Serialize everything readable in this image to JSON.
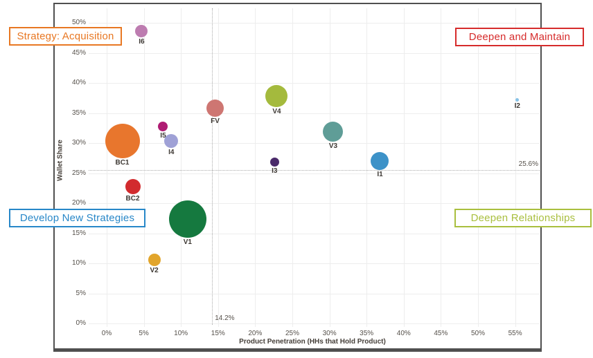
{
  "chart_data": {
    "type": "scatter",
    "subtype": "bubble-quadrant",
    "xlabel": "Product Penetration (HHs that Hold Product)",
    "ylabel": "Wallet Share",
    "xlim": [
      -2.4,
      58.4
    ],
    "ylim": [
      -0.6,
      52.5
    ],
    "grid": true,
    "x_ticks": [
      {
        "v": 0,
        "t": "0%"
      },
      {
        "v": 5,
        "t": "5%"
      },
      {
        "v": 10,
        "t": "10%"
      },
      {
        "v": 15,
        "t": "15%"
      },
      {
        "v": 20,
        "t": "20%"
      },
      {
        "v": 25,
        "t": "25%"
      },
      {
        "v": 30,
        "t": "30%"
      },
      {
        "v": 35,
        "t": "35%"
      },
      {
        "v": 40,
        "t": "40%"
      },
      {
        "v": 45,
        "t": "45%"
      },
      {
        "v": 50,
        "t": "50%"
      },
      {
        "v": 55,
        "t": "55%"
      }
    ],
    "y_ticks": [
      {
        "v": 0,
        "t": "0%"
      },
      {
        "v": 5,
        "t": "5%"
      },
      {
        "v": 10,
        "t": "10%"
      },
      {
        "v": 15,
        "t": "15%"
      },
      {
        "v": 20,
        "t": "20%"
      },
      {
        "v": 25,
        "t": "25%"
      },
      {
        "v": 30,
        "t": "30%"
      },
      {
        "v": 35,
        "t": "35%"
      },
      {
        "v": 40,
        "t": "40%"
      },
      {
        "v": 45,
        "t": "45%"
      },
      {
        "v": 50,
        "t": "50%"
      }
    ],
    "reference_lines": {
      "x_value": 14.2,
      "y_value": 25.6,
      "x_label": "14.2%",
      "y_label": "25.6%"
    },
    "points": [
      {
        "label": "BC1",
        "x": 2.1,
        "y": 30.4,
        "r": 25,
        "color": "#E8762D"
      },
      {
        "label": "BC2",
        "x": 3.5,
        "y": 22.8,
        "r": 11,
        "color": "#D22B2E"
      },
      {
        "label": "I6",
        "x": 4.7,
        "y": 48.6,
        "r": 9,
        "color": "#BD7CB0"
      },
      {
        "label": "V2",
        "x": 6.4,
        "y": 10.6,
        "r": 9,
        "color": "#E2A52B"
      },
      {
        "label": "I5",
        "x": 7.6,
        "y": 32.8,
        "r": 7,
        "color": "#AF1C73"
      },
      {
        "label": "I4",
        "x": 8.7,
        "y": 30.4,
        "r": 10,
        "color": "#9FA1D6"
      },
      {
        "label": "V1",
        "x": 10.9,
        "y": 17.4,
        "r": 27,
        "color": "#15793F"
      },
      {
        "label": "FV",
        "x": 14.6,
        "y": 35.8,
        "r": 12.5,
        "color": "#CE7672"
      },
      {
        "label": "I3",
        "x": 22.6,
        "y": 26.9,
        "r": 6.5,
        "color": "#4A2A6A"
      },
      {
        "label": "V4",
        "x": 22.9,
        "y": 37.8,
        "r": 16,
        "color": "#A4BA3D"
      },
      {
        "label": "V3",
        "x": 30.5,
        "y": 31.9,
        "r": 14.5,
        "color": "#5F9D97"
      },
      {
        "label": "I1",
        "x": 36.8,
        "y": 27.1,
        "r": 13,
        "color": "#3D92C8"
      },
      {
        "label": "I2",
        "x": 55.3,
        "y": 37.2,
        "r": 2.5,
        "color": "#86C2E7"
      }
    ],
    "quadrant_labels": [
      {
        "text": "Strategy: Acquisition",
        "color": "#E87722",
        "position": "top-left"
      },
      {
        "text": "Deepen and Maintain",
        "color": "#D62B2B",
        "position": "top-right"
      },
      {
        "text": "Develop New Strategies",
        "color": "#2787C8",
        "position": "bottom-left"
      },
      {
        "text": "Deepen Relationships",
        "color": "#A9BF3E",
        "position": "bottom-right"
      }
    ]
  }
}
